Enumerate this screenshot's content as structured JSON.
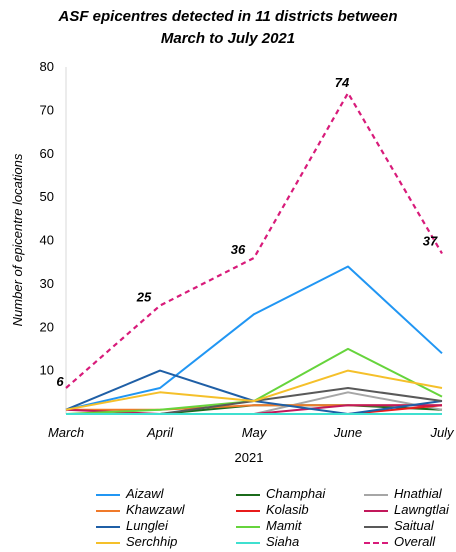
{
  "chart_data": {
    "type": "line",
    "title_line1": "ASF epicentres detected in 11 districts between",
    "title_line2": "March to July 2021",
    "categories": [
      "March",
      "April",
      "May",
      "June",
      "July"
    ],
    "xlabel": "2021",
    "ylabel": "Number of epicentre locations",
    "ylim": [
      0,
      80
    ],
    "yticks": [
      10,
      20,
      30,
      40,
      50,
      60,
      70,
      80
    ],
    "grid": false,
    "legend_position": "bottom",
    "series": [
      {
        "name": "Aizawl",
        "color": "#2196f3",
        "dash": false,
        "values": [
          1,
          6,
          23,
          34,
          14
        ]
      },
      {
        "name": "Champhai",
        "color": "#1b6b1b",
        "dash": false,
        "values": [
          0,
          0,
          2,
          2,
          1
        ]
      },
      {
        "name": "Hnathial",
        "color": "#a6a6a6",
        "dash": false,
        "values": [
          0,
          0,
          0,
          5,
          1
        ]
      },
      {
        "name": "Khawzawl",
        "color": "#f07a2a",
        "dash": false,
        "values": [
          1,
          1,
          2,
          2,
          2
        ]
      },
      {
        "name": "Kolasib",
        "color": "#e81b1b",
        "dash": false,
        "values": [
          0,
          0,
          0,
          0,
          2
        ]
      },
      {
        "name": "Lawngtlai",
        "color": "#c2185b",
        "dash": false,
        "values": [
          1,
          0,
          0,
          2,
          2
        ]
      },
      {
        "name": "Lunglei",
        "color": "#1f5fa6",
        "dash": false,
        "values": [
          1,
          10,
          3,
          0,
          3
        ]
      },
      {
        "name": "Mamit",
        "color": "#66d43c",
        "dash": false,
        "values": [
          0,
          1,
          3,
          15,
          4
        ]
      },
      {
        "name": "Saitual",
        "color": "#595959",
        "dash": false,
        "values": [
          0,
          0,
          3,
          6,
          3
        ]
      },
      {
        "name": "Serchhip",
        "color": "#f5c02a",
        "dash": false,
        "values": [
          1,
          5,
          3,
          10,
          6
        ]
      },
      {
        "name": "Siaha",
        "color": "#3fe0d0",
        "dash": false,
        "values": [
          0,
          0,
          0,
          0,
          0
        ]
      },
      {
        "name": "Overall",
        "color": "#d81b7a",
        "dash": true,
        "values": [
          6,
          25,
          36,
          74,
          37
        ]
      }
    ],
    "data_labels": [
      {
        "series": "Overall",
        "index": 0,
        "text": "6"
      },
      {
        "series": "Overall",
        "index": 1,
        "text": "25"
      },
      {
        "series": "Overall",
        "index": 2,
        "text": "36"
      },
      {
        "series": "Overall",
        "index": 3,
        "text": "74"
      },
      {
        "series": "Overall",
        "index": 4,
        "text": "37"
      }
    ]
  }
}
